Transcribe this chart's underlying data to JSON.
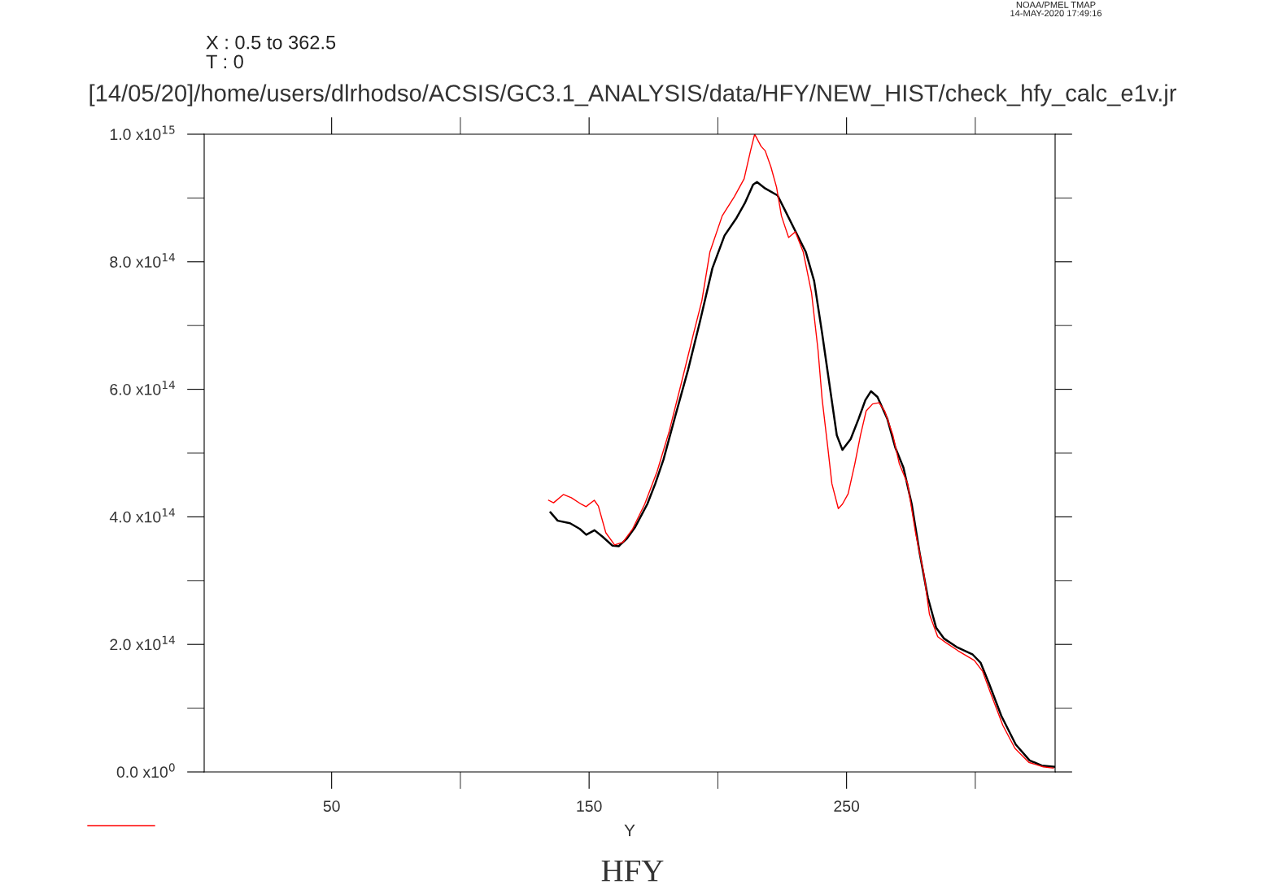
{
  "chart_data": {
    "type": "line",
    "title": "[14/05/20]/home/users/dlrhodso/ACSIS/GC3.1_ANALYSIS/data/HFY/NEW_HIST/check_hfy_calc_e1v.jr",
    "subtitle": "X : 0.5 to 362.5\nT : 0",
    "xlabel": "Y",
    "annotations": [
      "HFY",
      "NOAA/PMEL TMAP\n14-MAY-2020 17:49:16"
    ],
    "xlim": [
      0.5,
      331
    ],
    "xticks": [
      50,
      150,
      250
    ],
    "ylim": [
      0,
      1000000000000000.0
    ],
    "yticks": [
      {
        "value": 0,
        "label": "0.0 x10$^{0}$"
      },
      {
        "value": 200000000000000.0,
        "label": "2.0 x10$^{14}$"
      },
      {
        "value": 400000000000000.0,
        "label": "4.0 x10$^{14}$"
      },
      {
        "value": 600000000000000.0,
        "label": "6.0 x10$^{14}$"
      },
      {
        "value": 800000000000000.0,
        "label": "8.0 x10$^{14}$"
      },
      {
        "value": 1000000000000000.0,
        "label": "1.0 x10$^{15}$"
      }
    ],
    "grid": false,
    "series": [
      {
        "color": "#000000",
        "x": [
          135,
          137.8,
          142.6,
          146.4,
          148.9,
          152.1,
          155.2,
          159,
          161.5,
          164.7,
          167.9,
          172.6,
          175.7,
          178.9,
          183.6,
          188.4,
          193.1,
          197.9,
          202.6,
          207.3,
          210.5,
          213.7,
          215.2,
          218.4,
          223.2,
          226.3,
          229.5,
          234.2,
          237.4,
          240.5,
          243.7,
          246.2,
          248.4,
          251.6,
          254.7,
          257.3,
          259.5,
          262,
          265.8,
          268.9,
          272.1,
          275.3,
          278.4,
          281.6,
          284.8,
          287.9,
          292.7,
          299,
          302.1,
          305.3,
          310.1,
          315.7,
          321.1,
          325.8,
          330.6
        ],
        "values": [
          407000000000000.0,
          394000000000000.0,
          390000000000000.0,
          381000000000000.0,
          372000000000000.0,
          379000000000000.0,
          369000000000000.0,
          355000000000000.0,
          354000000000000.0,
          366000000000000.0,
          384000000000000.0,
          420000000000000.0,
          452000000000000.0,
          490000000000000.0,
          560000000000000.0,
          630000000000000.0,
          707000000000000.0,
          790000000000000.0,
          841000000000000.0,
          869000000000000.0,
          892000000000000.0,
          921000000000000.0,
          925000000000000.0,
          915000000000000.0,
          904000000000000.0,
          879000000000000.0,
          853000000000000.0,
          815000000000000.0,
          770000000000000.0,
          688000000000000.0,
          598000000000000.0,
          528000000000000.0,
          505000000000000.0,
          522000000000000.0,
          554000000000000.0,
          583000000000000.0,
          597000000000000.0,
          588000000000000.0,
          554000000000000.0,
          509000000000000.0,
          477000000000000.0,
          420000000000000.0,
          343000000000000.0,
          273000000000000.0,
          226000000000000.0,
          209000000000000.0,
          196000000000000.0,
          184000000000000.0,
          171000000000000.0,
          139000000000000.0,
          88000000000000.0,
          43000000000000.0,
          18000000000000.0,
          10000000000000.0,
          8000000000000.0
        ]
      },
      {
        "color": "#ff0000",
        "x": [
          134.3,
          136.2,
          140,
          143.1,
          146.9,
          148.8,
          152,
          153.6,
          156.5,
          159.9,
          163.1,
          166.9,
          171.6,
          176.4,
          181.1,
          185.9,
          190.6,
          193.8,
          196.9,
          201.7,
          206.4,
          210.2,
          212.7,
          214.3,
          216.8,
          218.4,
          220.6,
          222.8,
          224.7,
          226,
          227.5,
          230.1,
          233.2,
          236.4,
          238.9,
          240.5,
          242.7,
          244.3,
          246.8,
          248.4,
          250.6,
          253.2,
          255.4,
          257.6,
          260.1,
          262.6,
          264.8,
          268,
          270.5,
          273.7,
          276.8,
          280,
          282.2,
          285.4,
          288.5,
          293.3,
          299.6,
          302.8,
          305.9,
          310.7,
          315.4,
          320.8,
          326.4,
          330.3
        ],
        "values": [
          426000000000000.0,
          422000000000000.0,
          435000000000000.0,
          430000000000000.0,
          420000000000000.0,
          416000000000000.0,
          426000000000000.0,
          417000000000000.0,
          375000000000000.0,
          356000000000000.0,
          360000000000000.0,
          381000000000000.0,
          420000000000000.0,
          471000000000000.0,
          534000000000000.0,
          611000000000000.0,
          688000000000000.0,
          739000000000000.0,
          815000000000000.0,
          872000000000000.0,
          902000000000000.0,
          930000000000000.0,
          974000000000000.0,
          1000000000000000.0,
          981000000000000.0,
          974000000000000.0,
          949000000000000.0,
          917000000000000.0,
          872000000000000.0,
          856000000000000.0,
          838000000000000.0,
          847000000000000.0,
          815000000000000.0,
          751000000000000.0,
          662000000000000.0,
          585000000000000.0,
          509000000000000.0,
          452000000000000.0,
          413000000000000.0,
          420000000000000.0,
          436000000000000.0,
          483000000000000.0,
          528000000000000.0,
          566000000000000.0,
          577000000000000.0,
          579000000000000.0,
          566000000000000.0,
          528000000000000.0,
          483000000000000.0,
          452000000000000.0,
          375000000000000.0,
          311000000000000.0,
          247000000000000.0,
          212000000000000.0,
          203000000000000.0,
          190000000000000.0,
          175000000000000.0,
          158000000000000.0,
          124000000000000.0,
          73000000000000.0,
          37000000000000.0,
          15000000000000.0,
          8000000000000.0,
          6000000000000.0
        ]
      }
    ]
  }
}
